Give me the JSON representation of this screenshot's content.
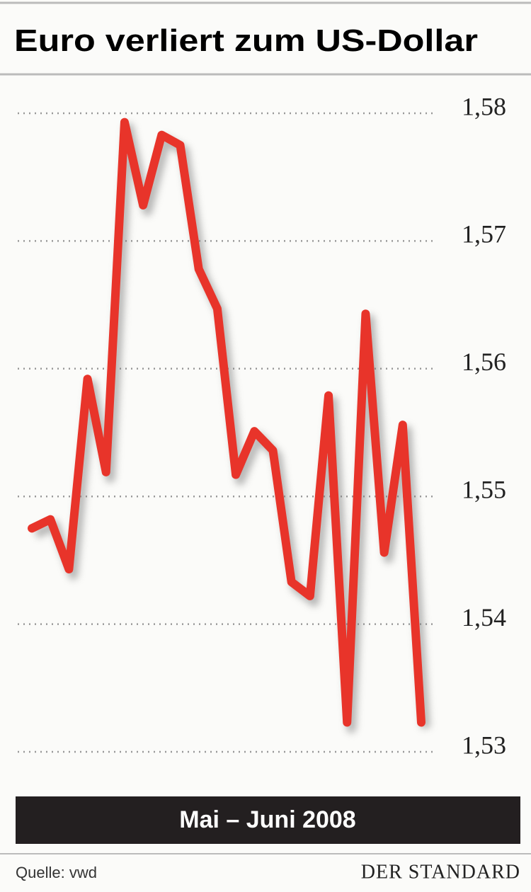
{
  "chart_data": {
    "type": "line",
    "title": "Euro verliert zum US-Dollar",
    "xlabel": "Mai – Juni 2008",
    "source": "Quelle: vwd",
    "publisher": "DER STANDARD",
    "categories": [
      null,
      null,
      null,
      null,
      null,
      null,
      null,
      null,
      null,
      null,
      null,
      null,
      null,
      null,
      null,
      null,
      null,
      null,
      null,
      null,
      null,
      null
    ],
    "values": [
      1.5475,
      1.5482,
      1.5443,
      1.5592,
      1.5519,
      1.5793,
      1.5728,
      1.5783,
      1.5775,
      1.5678,
      1.5647,
      1.5517,
      1.5551,
      1.5536,
      1.5433,
      1.5422,
      1.5579,
      1.5323,
      1.5643,
      1.5456,
      1.5556,
      1.5323
    ],
    "color": "#e8342a",
    "ylim": [
      1.53,
      1.58
    ],
    "yticks": [
      {
        "value": 1.53,
        "label": "1,53"
      },
      {
        "value": 1.54,
        "label": "1,54"
      },
      {
        "value": 1.55,
        "label": "1,55"
      },
      {
        "value": 1.56,
        "label": "1,56"
      },
      {
        "value": 1.57,
        "label": "1,57"
      },
      {
        "value": 1.58,
        "label": "1,58"
      }
    ],
    "grid": true
  }
}
